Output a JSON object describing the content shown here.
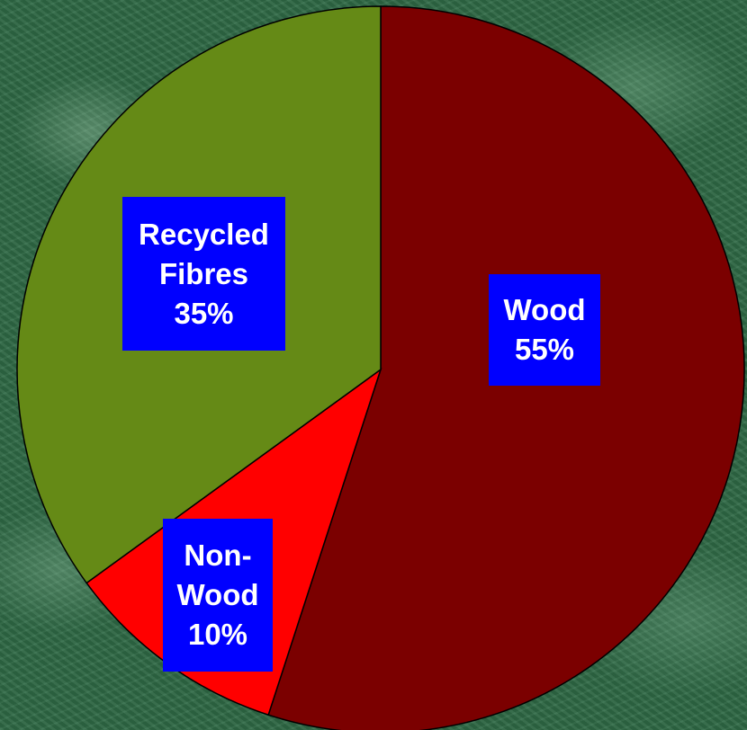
{
  "chart_data": {
    "type": "pie",
    "categories": [
      "Wood",
      "Non-Wood",
      "Recycled Fibres"
    ],
    "values": [
      55,
      10,
      35
    ],
    "value_labels": [
      "55%",
      "10%",
      "35%"
    ],
    "label_lines": [
      [
        "Wood",
        "55%"
      ],
      [
        "Non-",
        "Wood",
        "10%"
      ],
      [
        "Recycled",
        "Fibres",
        "35%"
      ]
    ],
    "colors": [
      "#7b0000",
      "#ff0000",
      "#658a16"
    ],
    "label_color": "#ffffff",
    "label_background": "#0000ff",
    "start_angle_deg": 0,
    "direction": "clockwise",
    "legend": "none"
  }
}
